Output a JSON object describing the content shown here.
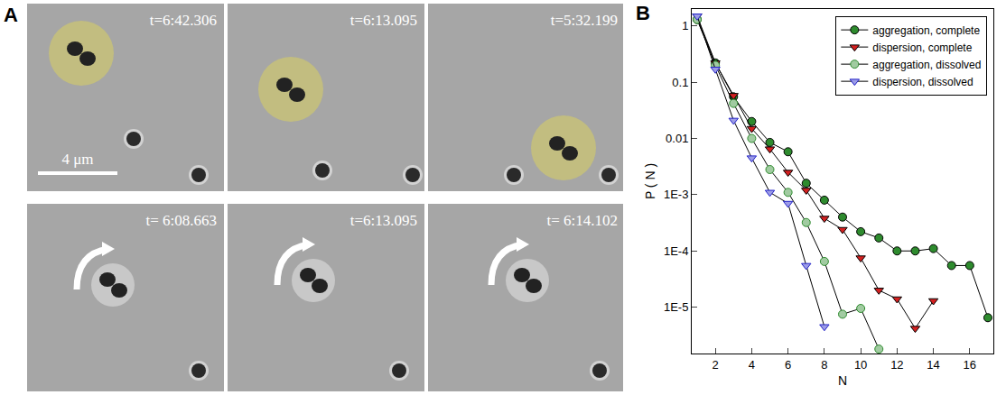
{
  "panel_labels": [
    "A",
    "B"
  ],
  "panel_A": {
    "scale_bar": "4 μm",
    "frames": [
      [
        "t=6:42.306",
        "t=6:13.095",
        "t=5:32.199"
      ],
      [
        "t= 6:08.663",
        "t=6:13.095",
        "t= 6:14.102"
      ]
    ]
  },
  "chart_data": {
    "type": "line",
    "log": "y",
    "grid": false,
    "legend": "top-right",
    "x_label": "N",
    "y_label": "P ( N )",
    "xlim": [
      0.7,
      17.3
    ],
    "xticks": [
      2,
      4,
      6,
      8,
      10,
      12,
      14,
      16
    ],
    "ylim": [
      1.5e-06,
      2
    ],
    "yticks": [
      1,
      0.1,
      0.01,
      {
        "value": 0.001,
        "label": "1E-3"
      },
      {
        "value": 0.0001,
        "label": "1E-4"
      },
      {
        "value": 1e-05,
        "label": "1E-5"
      }
    ],
    "series": [
      {
        "name": "aggregation, complete",
        "color": "#2e8b2e",
        "marker": "circle",
        "x": [
          1,
          2,
          3,
          4,
          5,
          6,
          7,
          8,
          9,
          10,
          11,
          12,
          13,
          14,
          15,
          16,
          17
        ],
        "values": [
          1.3,
          0.22,
          0.055,
          0.02,
          0.0085,
          0.0058,
          0.0016,
          0.0008,
          0.0004,
          0.00022,
          0.00017,
          0.0001,
          0.0001,
          0.00011,
          5.5e-05,
          5.5e-05,
          6.5e-06
        ]
      },
      {
        "name": "dispersion, complete",
        "color": "#d42020",
        "marker": "triangle-down",
        "x": [
          1,
          2,
          3,
          4,
          5,
          6,
          7,
          8,
          9,
          10,
          11,
          12,
          13,
          14
        ],
        "values": [
          1.5,
          0.22,
          0.058,
          0.015,
          0.0065,
          0.0025,
          0.0012,
          0.00038,
          0.00024,
          7.5e-05,
          2e-05,
          1.4e-05,
          4.2e-06,
          1.3e-05
        ]
      },
      {
        "name": "aggregation, dissolved",
        "color": "#2e8b2e",
        "marker": "half-circle",
        "x": [
          1,
          2,
          3,
          4,
          5,
          6,
          7,
          8,
          9,
          10,
          11
        ],
        "values": [
          1.3,
          0.2,
          0.042,
          0.01,
          0.0028,
          0.0011,
          0.00032,
          6.5e-05,
          7.5e-06,
          9.5e-06,
          1.8e-06
        ]
      },
      {
        "name": "dispersion, dissolved",
        "color": "#2323c8",
        "marker": "half-triangle-down",
        "x": [
          1,
          2,
          3,
          4,
          5,
          6,
          7,
          8
        ],
        "values": [
          1.5,
          0.17,
          0.021,
          0.0045,
          0.0011,
          0.0007,
          5.5e-05,
          4.5e-06
        ]
      }
    ]
  }
}
